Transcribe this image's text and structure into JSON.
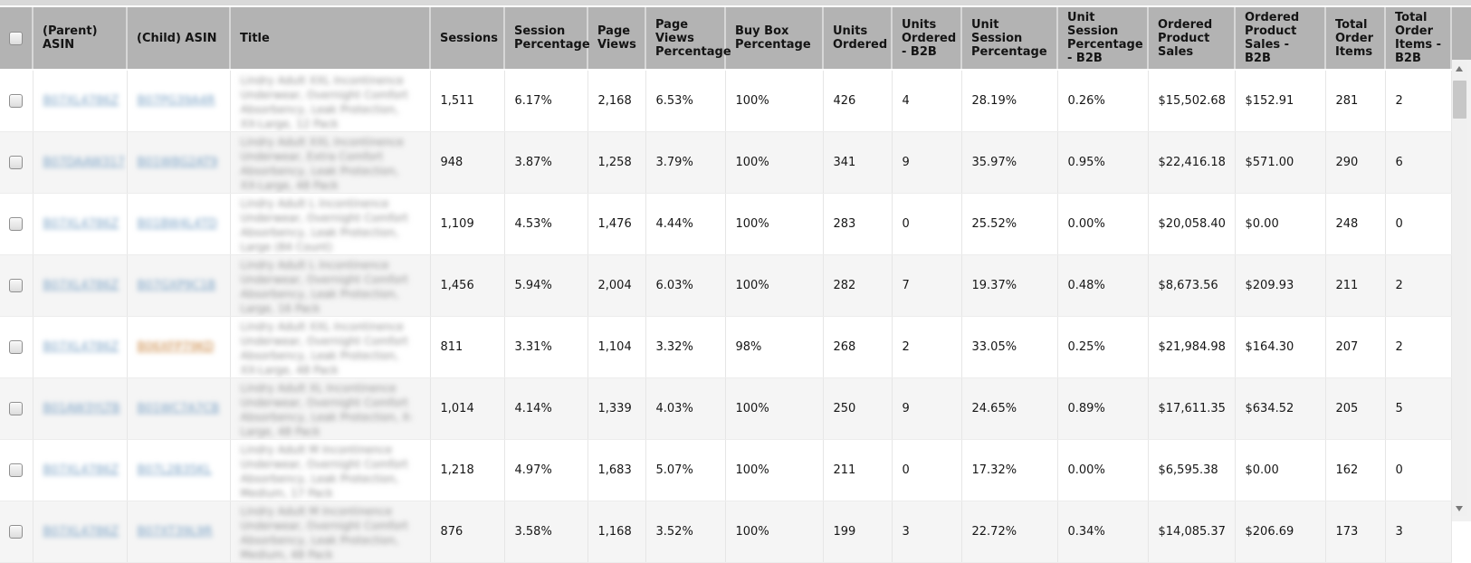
{
  "report": {
    "redaction_note": "ASIN links and product titles are blurred out in the source pixels; strings below are blurred placeholders",
    "columns": [
      {
        "key": "select",
        "label": ""
      },
      {
        "key": "parent_asin",
        "label": "(Parent) ASIN"
      },
      {
        "key": "child_asin",
        "label": "(Child) ASIN"
      },
      {
        "key": "title",
        "label": "Title"
      },
      {
        "key": "sessions",
        "label": "Sessions"
      },
      {
        "key": "session_percentage",
        "label": "Session Percentage"
      },
      {
        "key": "page_views",
        "label": "Page Views"
      },
      {
        "key": "page_views_percentage",
        "label": "Page Views Percentage"
      },
      {
        "key": "buy_box_percentage",
        "label": "Buy Box Percentage"
      },
      {
        "key": "units_ordered",
        "label": "Units Ordered"
      },
      {
        "key": "units_ordered_b2b",
        "label": "Units Ordered - B2B"
      },
      {
        "key": "unit_session_percentage",
        "label": "Unit Session Percentage"
      },
      {
        "key": "unit_session_percentage_b2b",
        "label": "Unit Session Percentage - B2B"
      },
      {
        "key": "ordered_product_sales",
        "label": "Ordered Product Sales"
      },
      {
        "key": "ordered_product_sales_b2b",
        "label": "Ordered Product Sales - B2B"
      },
      {
        "key": "total_order_items",
        "label": "Total Order Items"
      },
      {
        "key": "total_order_items_b2b",
        "label": "Total Order Items - B2B"
      }
    ],
    "rows": [
      {
        "checked": false,
        "parent_asin_redacted": "B07XL4786Z",
        "child_asin_redacted": "B07PG39A4R",
        "child_asin_color": "blue",
        "title_redacted": "Lindry Adult XXL Incontinence Underwear, Overnight Comfort Absorbency, Leak Protection, XX-Large, 12 Pack",
        "metrics": [
          "1,511",
          "6.17%",
          "2,168",
          "6.53%",
          "100%",
          "426",
          "4",
          "28.19%",
          "0.26%",
          "$15,502.68",
          "$152.91",
          "281",
          "2"
        ]
      },
      {
        "checked": false,
        "parent_asin_redacted": "B07DAAW317",
        "child_asin_redacted": "B01W8G2AT9",
        "child_asin_color": "blue",
        "title_redacted": "Lindry Adult XXL Incontinence Underwear, Extra Comfort Absorbency, Leak Protection, XX-Large, 48 Pack",
        "metrics": [
          "948",
          "3.87%",
          "1,258",
          "3.79%",
          "100%",
          "341",
          "9",
          "35.97%",
          "0.95%",
          "$22,416.18",
          "$571.00",
          "290",
          "6"
        ]
      },
      {
        "checked": false,
        "parent_asin_redacted": "B07XL4786Z",
        "child_asin_redacted": "B01BW4L4TD",
        "child_asin_color": "blue",
        "title_redacted": "Lindry Adult L Incontinence Underwear, Overnight Comfort Absorbency, Leak Protection, Large (84 Count)",
        "metrics": [
          "1,109",
          "4.53%",
          "1,476",
          "4.44%",
          "100%",
          "283",
          "0",
          "25.52%",
          "0.00%",
          "$20,058.40",
          "$0.00",
          "248",
          "0"
        ]
      },
      {
        "checked": false,
        "parent_asin_redacted": "B07XL4786Z",
        "child_asin_redacted": "B07GXP9C1B",
        "child_asin_color": "blue",
        "title_redacted": "Lindry Adult L Incontinence Underwear, Overnight Comfort Absorbency, Leak Protection, Large, 16 Pack",
        "metrics": [
          "1,456",
          "5.94%",
          "2,004",
          "6.03%",
          "100%",
          "282",
          "7",
          "19.37%",
          "0.48%",
          "$8,673.56",
          "$209.93",
          "211",
          "2"
        ]
      },
      {
        "checked": false,
        "parent_asin_redacted": "B07XL4786Z",
        "child_asin_redacted": "B06XFP79KD",
        "child_asin_color": "orange",
        "title_redacted": "Lindry Adult XXL Incontinence Underwear, Overnight Comfort Absorbency, Leak Protection, XX-Large, 48 Pack",
        "metrics": [
          "811",
          "3.31%",
          "1,104",
          "3.32%",
          "98%",
          "268",
          "2",
          "33.05%",
          "0.25%",
          "$21,984.98",
          "$164.30",
          "207",
          "2"
        ]
      },
      {
        "checked": false,
        "parent_asin_redacted": "B01AW3YLTB",
        "child_asin_redacted": "B01WC7A7CB",
        "child_asin_color": "blue",
        "title_redacted": "Lindry Adult XL Incontinence Underwear, Overnight Comfort Absorbency, Leak Protection, X-Large, 48 Pack",
        "metrics": [
          "1,014",
          "4.14%",
          "1,339",
          "4.03%",
          "100%",
          "250",
          "9",
          "24.65%",
          "0.89%",
          "$17,611.35",
          "$634.52",
          "205",
          "5"
        ]
      },
      {
        "checked": false,
        "parent_asin_redacted": "B07XL4786Z",
        "child_asin_redacted": "B07L2B35KL",
        "child_asin_color": "blue",
        "title_redacted": "Lindry Adult M Incontinence Underwear, Overnight Comfort Absorbency, Leak Protection, Medium, 17 Pack",
        "metrics": [
          "1,218",
          "4.97%",
          "1,683",
          "5.07%",
          "100%",
          "211",
          "0",
          "17.32%",
          "0.00%",
          "$6,595.38",
          "$0.00",
          "162",
          "0"
        ]
      },
      {
        "checked": false,
        "parent_asin_redacted": "B07XL4786Z",
        "child_asin_redacted": "B07XT39L9R",
        "child_asin_color": "blue",
        "title_redacted": "Lindry Adult M Incontinence Underwear, Overnight Comfort Absorbency, Leak Protection, Medium, 48 Pack",
        "metrics": [
          "876",
          "3.58%",
          "1,168",
          "3.52%",
          "100%",
          "199",
          "3",
          "22.72%",
          "0.34%",
          "$14,085.37",
          "$206.69",
          "173",
          "3"
        ]
      }
    ]
  },
  "scrollbar": {
    "up_icon": "up-triangle",
    "down_icon": "down-triangle"
  },
  "colors": {
    "header_bg": "#b3b3b3",
    "top_strip": "#d9d9d9",
    "alt_row_bg": "#f5f5f5",
    "asin_link_blue": "#7ca3c6",
    "asin_link_orange": "#c9853f",
    "title_text_gray": "#8f8f8f",
    "scrollbar_track": "#f0f0f0",
    "scrollbar_thumb": "#c7c7c7"
  }
}
